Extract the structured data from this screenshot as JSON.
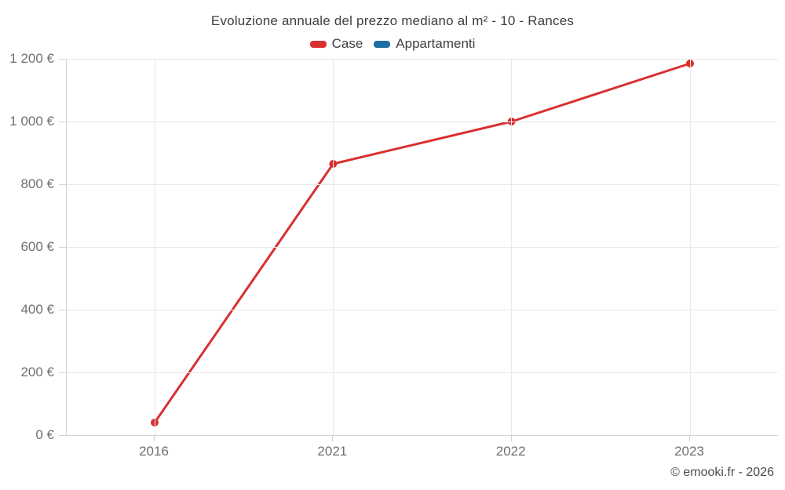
{
  "header": {
    "title": "Evoluzione annuale del prezzo mediano al m² - 10 - Rances"
  },
  "legend": {
    "items": [
      {
        "label": "Case",
        "color": "#d93030"
      },
      {
        "label": "Appartamenti",
        "color": "#1c6ea4"
      }
    ]
  },
  "footer": {
    "credit": "© emooki.fr - 2026"
  },
  "chart_data": {
    "type": "line",
    "title": "Evoluzione annuale del prezzo mediano al m² - 10 - Rances",
    "categories": [
      "2016",
      "2021",
      "2022",
      "2023"
    ],
    "series": [
      {
        "name": "Case",
        "color": "#d93030",
        "values": [
          40,
          865,
          1000,
          1185
        ]
      },
      {
        "name": "Appartamenti",
        "color": "#1c6ea4",
        "values": []
      }
    ],
    "xlabel": "",
    "ylabel": "",
    "ylim": [
      0,
      1200
    ],
    "yticks": [
      {
        "value": 0,
        "label": "0 €"
      },
      {
        "value": 200,
        "label": "200 €"
      },
      {
        "value": 400,
        "label": "400 €"
      },
      {
        "value": 600,
        "label": "600 €"
      },
      {
        "value": 800,
        "label": "800 €"
      },
      {
        "value": 1000,
        "label": "1 000 €"
      },
      {
        "value": 1200,
        "label": "1 200 €"
      }
    ],
    "grid": true,
    "legend_position": "top",
    "currency": "€"
  }
}
